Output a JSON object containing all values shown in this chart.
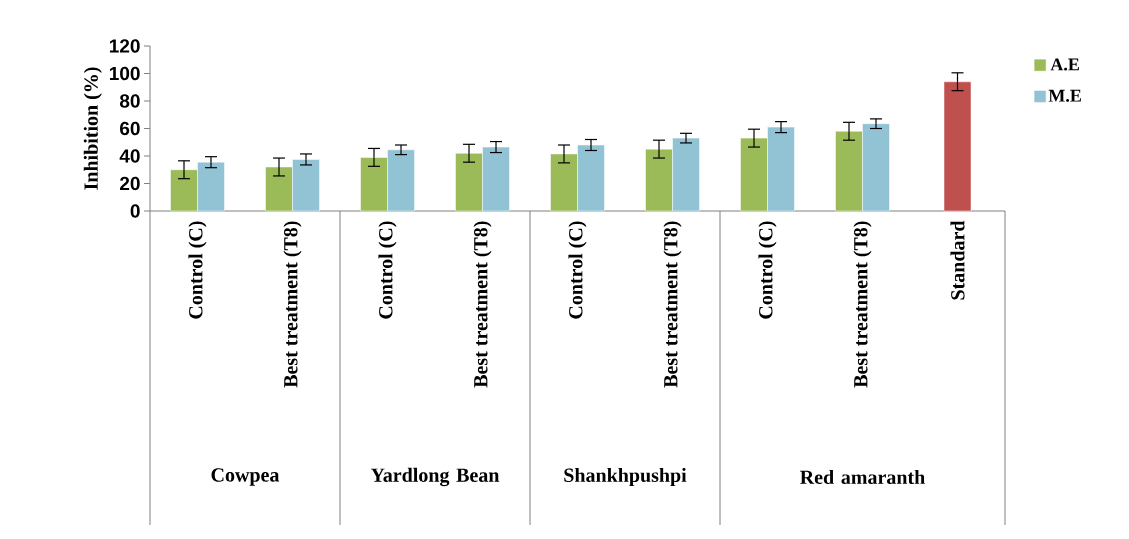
{
  "chart_data": {
    "type": "bar",
    "ylabel": "Inhibition (%)",
    "categories": [
      "Control (C)",
      "Best treatment (T8)",
      "Control (C)",
      "Best treatment (T8)",
      "Control (C)",
      "Best treatment (T8)",
      "Control (C)",
      "Best treatment (T8)",
      "Standard"
    ],
    "series": [
      {
        "name": "A.E",
        "color": "#9bbb59",
        "values": [
          30,
          32,
          39,
          42,
          41.5,
          45,
          53,
          58,
          null
        ],
        "errors": [
          6.5,
          6.5,
          6.5,
          6.5,
          6.5,
          6.5,
          6.5,
          6.5,
          null
        ]
      },
      {
        "name": "M.E",
        "color": "#92c3d5",
        "values": [
          35.5,
          37.5,
          44.5,
          46.5,
          48,
          53,
          61,
          63.5,
          null
        ],
        "errors": [
          4,
          4,
          3.5,
          4,
          4,
          3.5,
          4,
          3.5,
          null
        ]
      },
      {
        "color": "#c0504d",
        "values": [
          null,
          null,
          null,
          null,
          null,
          null,
          null,
          null,
          94
        ],
        "errors": [
          null,
          null,
          null,
          null,
          null,
          null,
          null,
          null,
          6.5
        ]
      }
    ],
    "ylim": [
      0,
      120
    ],
    "yticks": [
      0,
      20,
      40,
      60,
      80,
      100,
      120
    ],
    "grid": false,
    "legend": "right",
    "annotations": [
      "Cowpea",
      "Yardlong Bean",
      "Shankhpushpi",
      "Red amaranth"
    ]
  }
}
